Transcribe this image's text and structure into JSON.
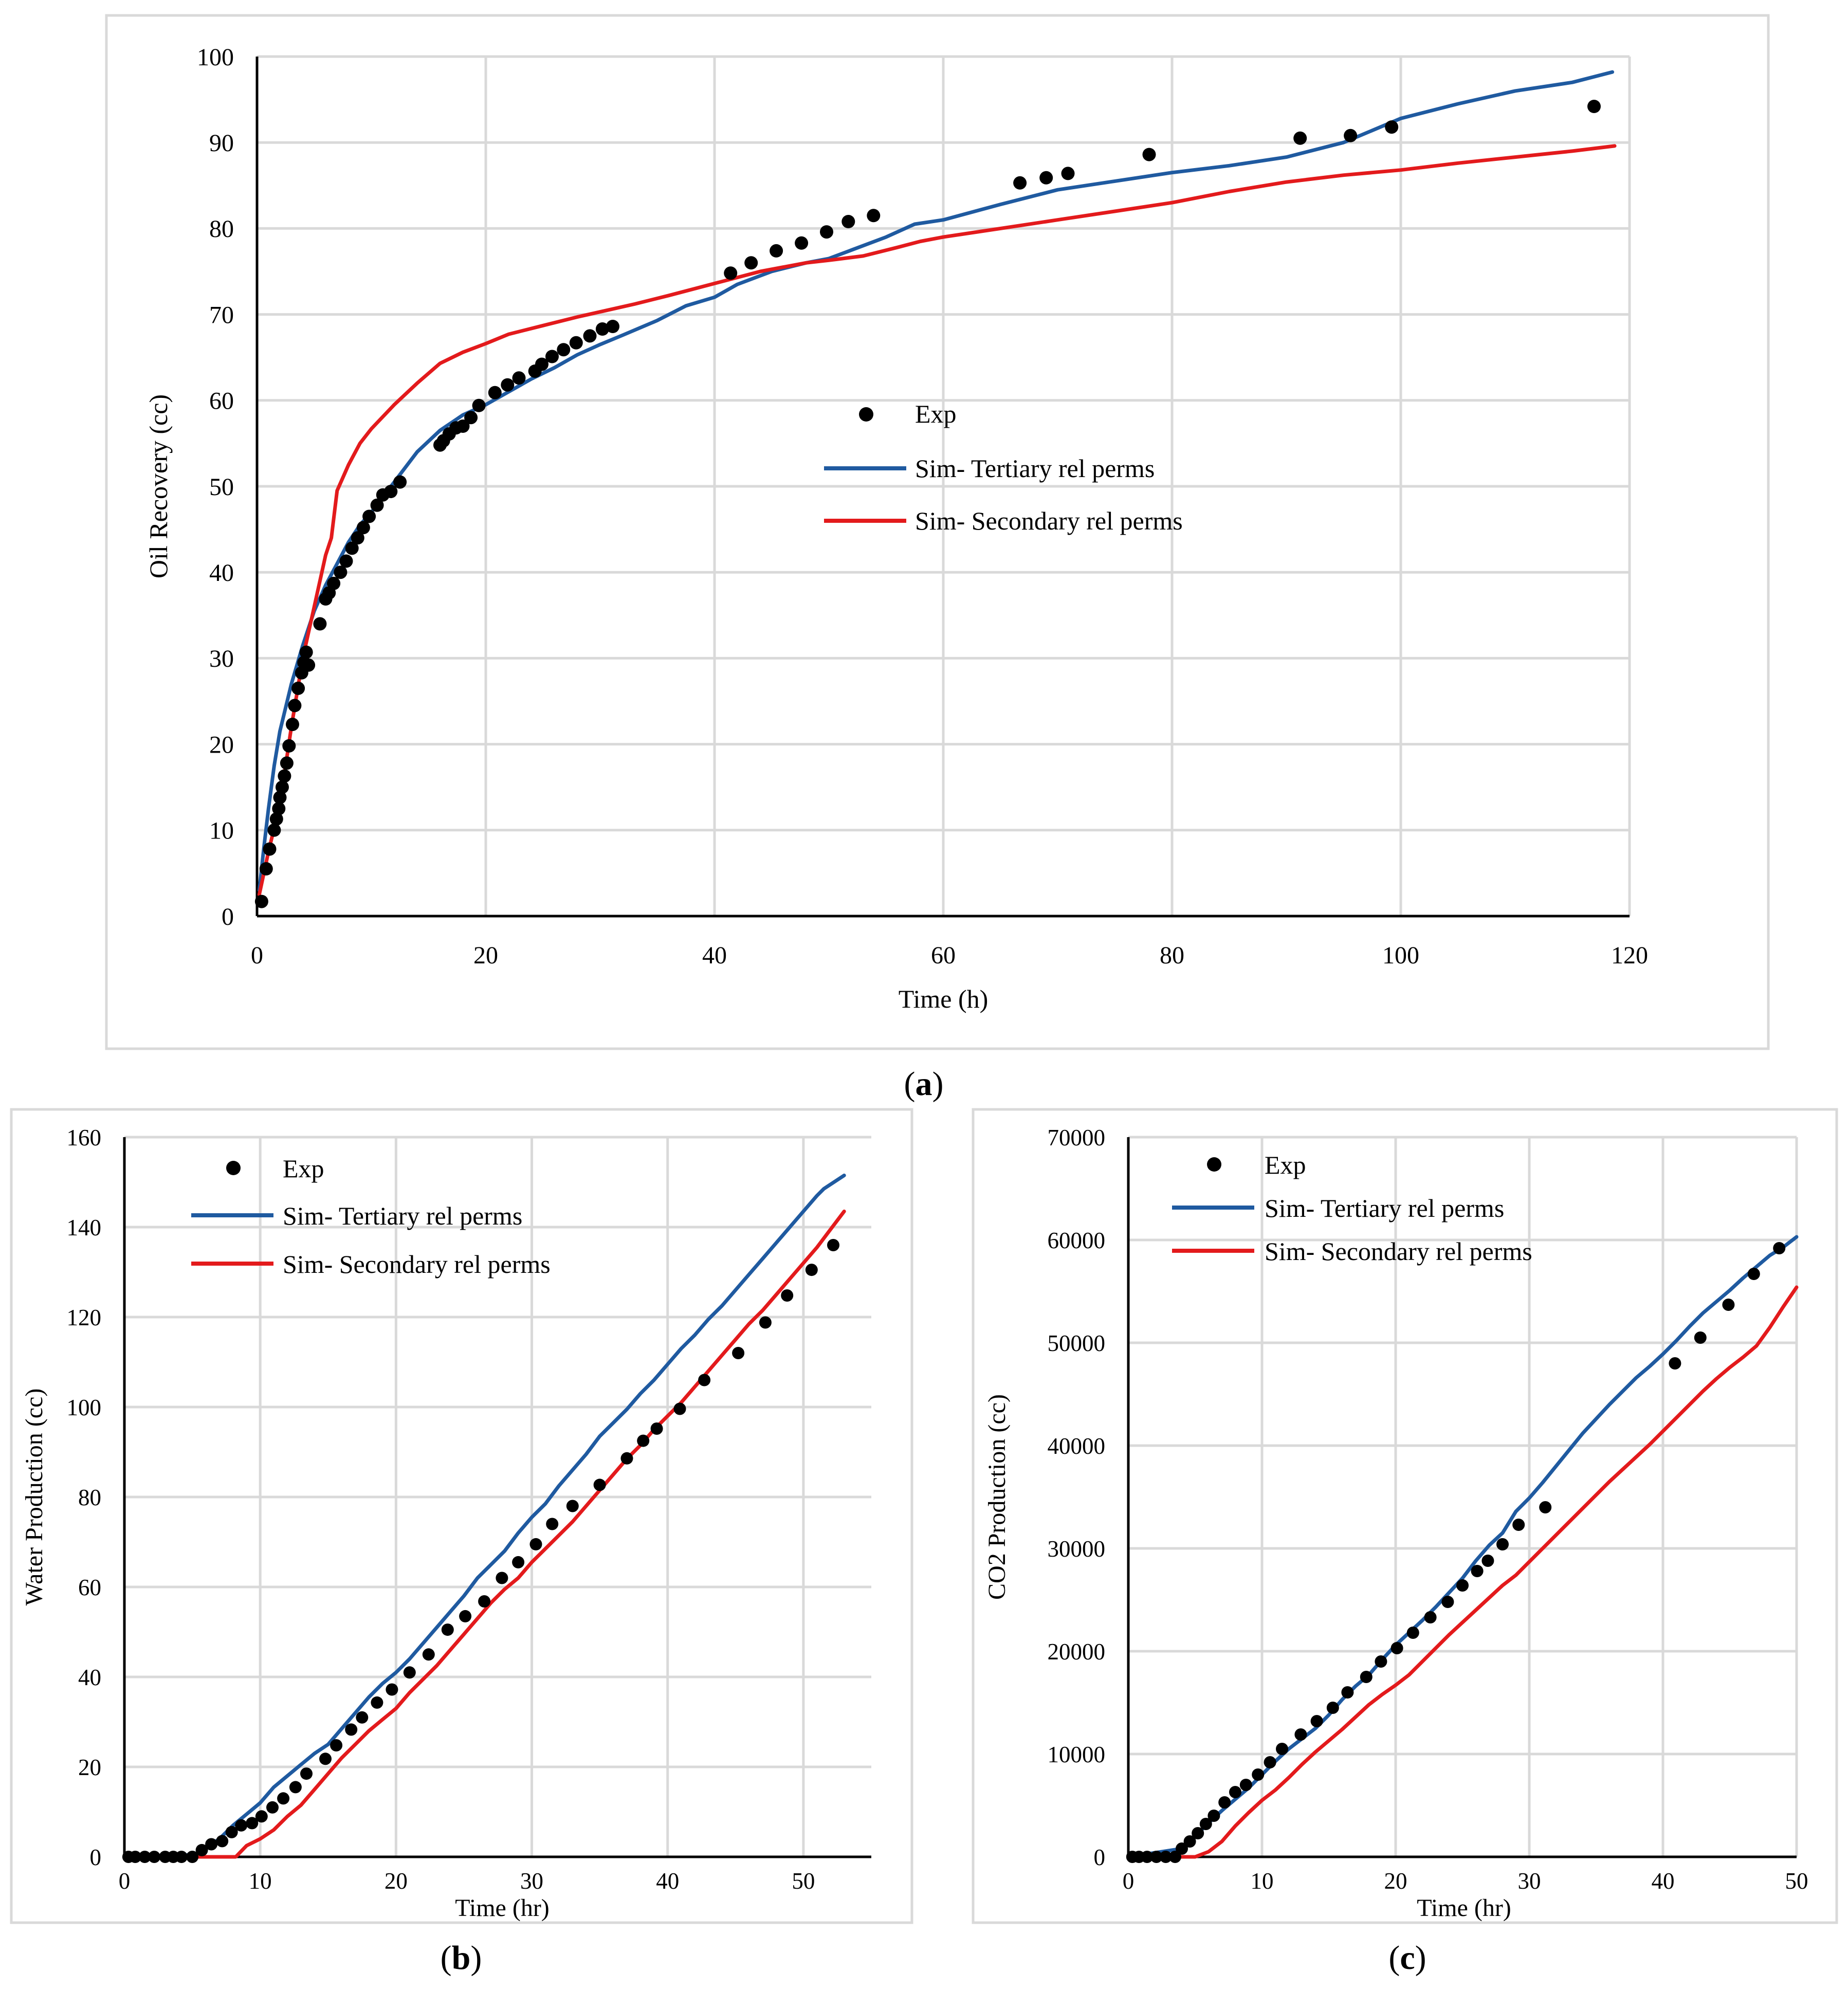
{
  "colors": {
    "exp": "#000000",
    "tertiary": "#1f5aa0",
    "secondary": "#e31a1c",
    "grid": "#d9d9d9",
    "frame": "#d9d9d9"
  },
  "chart_data": [
    {
      "id": "a",
      "type": "line",
      "caption_letter": "a",
      "title": "",
      "xlabel": "Time (h)",
      "ylabel": "Oil Recovery (cc)",
      "xlim": [
        0,
        120
      ],
      "ylim": [
        0,
        100
      ],
      "xticks": [
        0,
        20,
        40,
        60,
        80,
        100,
        120
      ],
      "yticks": [
        0,
        10,
        20,
        30,
        40,
        50,
        60,
        70,
        80,
        90,
        100
      ],
      "grid": true,
      "legend": {
        "position": "center",
        "entries": [
          "Exp",
          "Sim- Tertiary rel perms",
          "Sim- Secondary rel perms"
        ]
      },
      "series": [
        {
          "name": "Exp",
          "kind": "scatter",
          "x": [
            0.4,
            0.8,
            1.1,
            1.5,
            1.7,
            1.9,
            2.0,
            2.2,
            2.4,
            2.6,
            2.8,
            3.1,
            3.3,
            3.6,
            3.9,
            4.1,
            4.3,
            4.5,
            5.5,
            6.0,
            6.3,
            6.7,
            7.3,
            7.8,
            8.3,
            8.8,
            9.3,
            9.8,
            10.5,
            11.0,
            11.7,
            12.5,
            16.0,
            16.3,
            16.8,
            17.4,
            18.0,
            18.7,
            19.4,
            20.8,
            21.9,
            22.9,
            24.3,
            24.9,
            25.8,
            26.8,
            27.9,
            29.1,
            30.2,
            31.1,
            41.4,
            43.2,
            45.4,
            47.6,
            49.8,
            51.7,
            53.9,
            66.7,
            69.0,
            70.9,
            78.0,
            91.2,
            95.6,
            99.2,
            116.9
          ],
          "y": [
            1.7,
            5.5,
            7.8,
            10.0,
            11.3,
            12.5,
            13.8,
            15.0,
            16.3,
            17.8,
            19.8,
            22.3,
            24.5,
            26.5,
            28.3,
            29.5,
            30.7,
            29.2,
            34.0,
            36.9,
            37.6,
            38.7,
            40.0,
            41.3,
            42.8,
            44.0,
            45.2,
            46.5,
            47.8,
            49.0,
            49.4,
            50.5,
            54.8,
            55.3,
            56.1,
            56.8,
            57.0,
            58.0,
            59.4,
            60.9,
            61.8,
            62.6,
            63.4,
            64.2,
            65.1,
            65.9,
            66.7,
            67.5,
            68.3,
            68.6,
            74.8,
            76.0,
            77.4,
            78.3,
            79.6,
            80.8,
            81.5,
            85.3,
            85.9,
            86.4,
            88.6,
            90.5,
            90.8,
            91.8,
            94.2
          ]
        },
        {
          "name": "Sim- Tertiary rel perms",
          "kind": "line",
          "x": [
            0.2,
            0.6,
            1.0,
            1.5,
            2.0,
            3.0,
            4.0,
            5.0,
            6.0,
            7.0,
            8.0,
            9.0,
            10.0,
            12.0,
            14.0,
            16.0,
            18.0,
            20.0,
            22.0,
            24.0,
            26.0,
            28.0,
            30.0,
            32.0,
            35.0,
            37.5,
            40.0,
            42.0,
            45.0,
            48.0,
            50.0,
            52.0,
            55.0,
            57.5,
            60.0,
            65.0,
            70.0,
            75.0,
            80.0,
            85.0,
            90.0,
            95.0,
            100.0,
            105.0,
            110.0,
            115.0,
            118.5
          ],
          "y": [
            3.0,
            8.0,
            12.5,
            17.5,
            21.5,
            27.0,
            31.5,
            35.5,
            38.5,
            41.0,
            43.5,
            45.5,
            47.0,
            50.5,
            54.0,
            56.5,
            58.3,
            59.5,
            61.0,
            62.5,
            63.8,
            65.3,
            66.5,
            67.6,
            69.3,
            71.0,
            72.0,
            73.5,
            75.0,
            76.0,
            76.5,
            77.5,
            79.0,
            80.5,
            81.0,
            82.8,
            84.5,
            85.5,
            86.5,
            87.3,
            88.3,
            90.0,
            92.8,
            94.5,
            96.0,
            97.0,
            98.2
          ]
        },
        {
          "name": "Sim- Secondary rel perms",
          "kind": "line",
          "x": [
            0.2,
            1.0,
            2.0,
            3.0,
            4.0,
            5.0,
            6.0,
            6.5,
            7.0,
            8.0,
            9.0,
            10.0,
            12.0,
            14.0,
            16.0,
            18.0,
            20.0,
            22.0,
            25.0,
            28.0,
            30.0,
            33.0,
            36.0,
            40.0,
            44.0,
            48.0,
            50.0,
            53.0,
            56.0,
            58.0,
            60.0,
            65.0,
            70.0,
            75.0,
            80.0,
            85.0,
            90.0,
            95.0,
            100.0,
            105.0,
            110.0,
            115.0,
            118.7
          ],
          "y": [
            2.5,
            7.5,
            13.0,
            22.0,
            30.0,
            36.0,
            42.0,
            44.0,
            49.5,
            52.5,
            55.0,
            56.7,
            59.5,
            62.0,
            64.3,
            65.6,
            66.6,
            67.7,
            68.7,
            69.7,
            70.3,
            71.2,
            72.2,
            73.6,
            75.0,
            76.0,
            76.3,
            76.8,
            77.8,
            78.5,
            79.0,
            80.0,
            81.0,
            82.0,
            83.0,
            84.3,
            85.4,
            86.2,
            86.8,
            87.6,
            88.3,
            89.0,
            89.6
          ]
        }
      ]
    },
    {
      "id": "b",
      "type": "line",
      "caption_letter": "b",
      "title": "",
      "xlabel": "Time (hr)",
      "ylabel": "Water Production (cc)",
      "xlim": [
        0,
        55
      ],
      "ylim": [
        0,
        160
      ],
      "xticks": [
        0,
        10,
        20,
        30,
        40,
        50
      ],
      "yticks": [
        0,
        20,
        40,
        60,
        80,
        100,
        120,
        140,
        160
      ],
      "grid": true,
      "legend": {
        "position": "top-left",
        "entries": [
          "Exp",
          "Sim- Tertiary rel perms",
          "Sim- Secondary rel perms"
        ]
      },
      "series": [
        {
          "name": "Exp",
          "kind": "scatter",
          "x": [
            0.3,
            0.8,
            1.5,
            2.2,
            3.0,
            3.6,
            4.2,
            5.0,
            5.7,
            6.4,
            7.2,
            7.9,
            8.6,
            9.4,
            10.1,
            10.9,
            11.7,
            12.6,
            13.4,
            14.8,
            15.6,
            16.7,
            17.5,
            18.6,
            19.7,
            21.0,
            22.4,
            23.8,
            25.1,
            26.5,
            27.8,
            29.0,
            30.3,
            31.5,
            33.0,
            35.0,
            37.0,
            38.2,
            39.2,
            40.9,
            42.7,
            45.2,
            47.2,
            48.8,
            50.6,
            52.2
          ],
          "y": [
            0.0,
            0.0,
            0.0,
            0.0,
            0.0,
            0.0,
            0.0,
            0.0,
            1.5,
            2.8,
            3.5,
            5.5,
            7.0,
            7.5,
            9.0,
            11.0,
            13.0,
            15.5,
            18.5,
            21.8,
            24.8,
            28.3,
            31.0,
            34.3,
            37.2,
            41.0,
            45.0,
            50.5,
            53.5,
            56.8,
            62.0,
            65.5,
            69.5,
            74.0,
            78.0,
            82.7,
            88.6,
            92.5,
            95.2,
            99.6,
            106.0,
            112.0,
            118.8,
            124.8,
            130.5,
            136.0
          ]
        },
        {
          "name": "Sim- Tertiary rel perms",
          "kind": "line",
          "x": [
            0.0,
            5.5,
            6.0,
            7.0,
            8.0,
            9.0,
            10.0,
            11.0,
            12.0,
            13.0,
            14.0,
            15.0,
            16.0,
            17.0,
            18.0,
            19.0,
            20.0,
            21.0,
            22.0,
            23.0,
            24.0,
            25.0,
            26.0,
            27.0,
            28.0,
            29.0,
            30.0,
            31.0,
            32.0,
            33.0,
            34.0,
            35.0,
            36.0,
            37.0,
            38.0,
            39.0,
            40.0,
            41.0,
            42.0,
            43.0,
            44.0,
            45.0,
            46.0,
            47.0,
            48.0,
            49.0,
            50.0,
            51.0,
            51.5,
            53.0
          ],
          "y": [
            0.0,
            0.5,
            2.0,
            4.0,
            7.0,
            9.5,
            12.0,
            15.5,
            18.0,
            20.5,
            23.0,
            25.0,
            28.5,
            32.0,
            35.5,
            38.5,
            41.0,
            44.0,
            47.5,
            51.0,
            54.5,
            58.0,
            62.0,
            65.0,
            68.0,
            72.0,
            75.5,
            78.5,
            82.5,
            86.0,
            89.5,
            93.5,
            96.5,
            99.5,
            103.0,
            106.0,
            109.5,
            113.0,
            116.0,
            119.5,
            122.5,
            126.0,
            129.5,
            133.0,
            136.5,
            140.0,
            143.5,
            147.0,
            148.5,
            151.5
          ]
        },
        {
          "name": "Sim- Secondary rel perms",
          "kind": "line",
          "x": [
            0.0,
            8.2,
            9.0,
            10.0,
            11.0,
            12.0,
            13.0,
            14.0,
            15.0,
            16.0,
            17.0,
            18.0,
            19.0,
            20.0,
            21.0,
            22.0,
            23.0,
            24.0,
            25.0,
            26.0,
            27.0,
            28.0,
            29.0,
            30.0,
            31.0,
            32.0,
            33.0,
            34.0,
            35.0,
            36.0,
            37.0,
            38.0,
            39.0,
            40.0,
            41.0,
            42.0,
            43.0,
            44.0,
            45.0,
            46.0,
            47.0,
            48.0,
            49.0,
            50.0,
            51.0,
            52.0,
            53.0
          ],
          "y": [
            0.0,
            0.0,
            2.5,
            4.0,
            6.0,
            9.0,
            11.5,
            15.0,
            18.5,
            22.0,
            25.0,
            28.0,
            30.5,
            33.0,
            36.5,
            39.5,
            42.5,
            46.0,
            49.5,
            53.0,
            56.5,
            59.5,
            62.0,
            65.5,
            68.5,
            71.5,
            74.5,
            78.0,
            81.5,
            85.0,
            88.5,
            91.5,
            95.0,
            98.0,
            101.0,
            104.5,
            108.0,
            111.5,
            115.0,
            118.5,
            121.5,
            125.0,
            128.5,
            132.0,
            135.5,
            139.5,
            143.5
          ]
        }
      ]
    },
    {
      "id": "c",
      "type": "line",
      "caption_letter": "c",
      "title": "",
      "xlabel": "Time (hr)",
      "ylabel": "CO2 Production (cc)",
      "xlim": [
        0,
        50
      ],
      "ylim": [
        0,
        70000
      ],
      "xticks": [
        0,
        10,
        20,
        30,
        40,
        50
      ],
      "yticks": [
        0,
        10000,
        20000,
        30000,
        40000,
        50000,
        60000,
        70000
      ],
      "grid": true,
      "legend": {
        "position": "top-left",
        "entries": [
          "Exp",
          "Sim- Tertiary rel perms",
          "Sim- Secondary rel perms"
        ]
      },
      "series": [
        {
          "name": "Exp",
          "kind": "scatter",
          "x": [
            0.3,
            0.8,
            1.4,
            2.1,
            2.8,
            3.5,
            4.0,
            4.6,
            5.2,
            5.8,
            6.4,
            7.2,
            8.0,
            8.8,
            9.7,
            10.6,
            11.5,
            12.9,
            14.1,
            15.3,
            16.4,
            17.8,
            18.9,
            20.1,
            21.3,
            22.6,
            23.9,
            25.0,
            26.1,
            26.9,
            28.0,
            29.2,
            31.2,
            40.9,
            42.8,
            44.9,
            46.8,
            48.7
          ],
          "y": [
            0,
            0,
            0,
            0,
            0,
            0,
            800,
            1500,
            2300,
            3200,
            4000,
            5300,
            6300,
            7000,
            8000,
            9200,
            10500,
            11900,
            13200,
            14500,
            16000,
            17500,
            19000,
            20300,
            21800,
            23300,
            24800,
            26400,
            27800,
            28800,
            30400,
            32300,
            34000,
            48000,
            50500,
            53700,
            56700,
            59200
          ]
        },
        {
          "name": "Sim- Tertiary rel perms",
          "kind": "line",
          "x": [
            0.0,
            4.0,
            5.0,
            6.0,
            7.0,
            8.0,
            9.0,
            10.0,
            11.0,
            12.0,
            13.0,
            14.0,
            15.0,
            16.0,
            17.0,
            18.0,
            19.0,
            20.0,
            21.0,
            22.0,
            23.0,
            24.0,
            25.0,
            26.0,
            27.0,
            28.0,
            29.0,
            30.0,
            31.0,
            32.0,
            33.0,
            34.0,
            35.0,
            36.0,
            37.0,
            38.0,
            39.0,
            40.0,
            41.0,
            42.0,
            43.0,
            44.0,
            45.0,
            46.0,
            47.0,
            48.0,
            49.0,
            50.0
          ],
          "y": [
            0,
            800,
            2000,
            3300,
            4500,
            5600,
            6700,
            8000,
            9300,
            10500,
            11500,
            12500,
            13800,
            15300,
            16600,
            17700,
            19200,
            20600,
            21800,
            23000,
            24300,
            25700,
            27100,
            28800,
            30300,
            31500,
            33600,
            34900,
            36400,
            38000,
            39600,
            41200,
            42600,
            44000,
            45300,
            46600,
            47700,
            48900,
            50200,
            51600,
            52900,
            54000,
            55100,
            56300,
            57400,
            58500,
            59300,
            60300
          ]
        },
        {
          "name": "Sim- Secondary rel perms",
          "kind": "line",
          "x": [
            0.0,
            5.0,
            6.0,
            7.0,
            8.0,
            9.0,
            10.0,
            11.0,
            12.0,
            13.0,
            14.0,
            15.0,
            16.0,
            17.0,
            18.0,
            19.0,
            20.0,
            21.0,
            22.0,
            23.0,
            24.0,
            25.0,
            26.0,
            27.0,
            28.0,
            29.0,
            30.0,
            31.0,
            32.0,
            33.0,
            34.0,
            35.0,
            36.0,
            37.0,
            38.0,
            39.0,
            40.0,
            41.0,
            42.0,
            43.0,
            44.0,
            45.0,
            46.0,
            47.0,
            48.0,
            49.0,
            50.0
          ],
          "y": [
            0,
            0,
            500,
            1500,
            3000,
            4300,
            5500,
            6500,
            7700,
            9000,
            10200,
            11300,
            12400,
            13600,
            14800,
            15800,
            16700,
            17700,
            19000,
            20300,
            21600,
            22800,
            24000,
            25200,
            26400,
            27400,
            28700,
            30000,
            31300,
            32600,
            33900,
            35200,
            36500,
            37700,
            38900,
            40100,
            41400,
            42700,
            44000,
            45300,
            46500,
            47600,
            48600,
            49700,
            51500,
            53500,
            55400
          ]
        }
      ]
    }
  ]
}
